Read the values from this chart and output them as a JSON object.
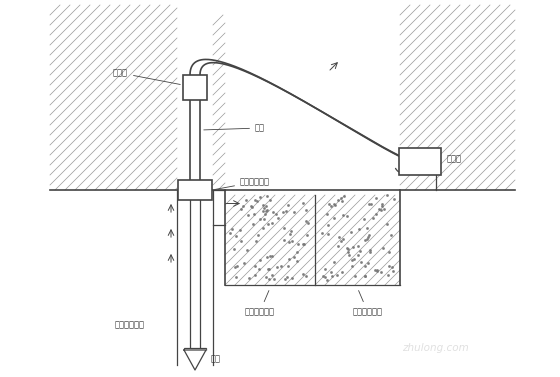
{
  "bg_color": "#ffffff",
  "line_color": "#444444",
  "hatch_color": "#999999",
  "label_color": "#333333",
  "labels": {
    "shuiLongTou": "水龙头",
    "zuanGan": "钻杆",
    "zuanJiJuZhongZhuangZhi": "钻机回转装置",
    "niJiangBeng": "泥浆泵",
    "chenDiChiJiChenDi": "沉淀池及沉淀",
    "niJiangChiJiNiJiang": "泥浆池及泥浆",
    "niJiangXunHuanFangXiang": "泥浆循环方向",
    "zuanTou": "钻头"
  },
  "watermark": "zhulong.com"
}
